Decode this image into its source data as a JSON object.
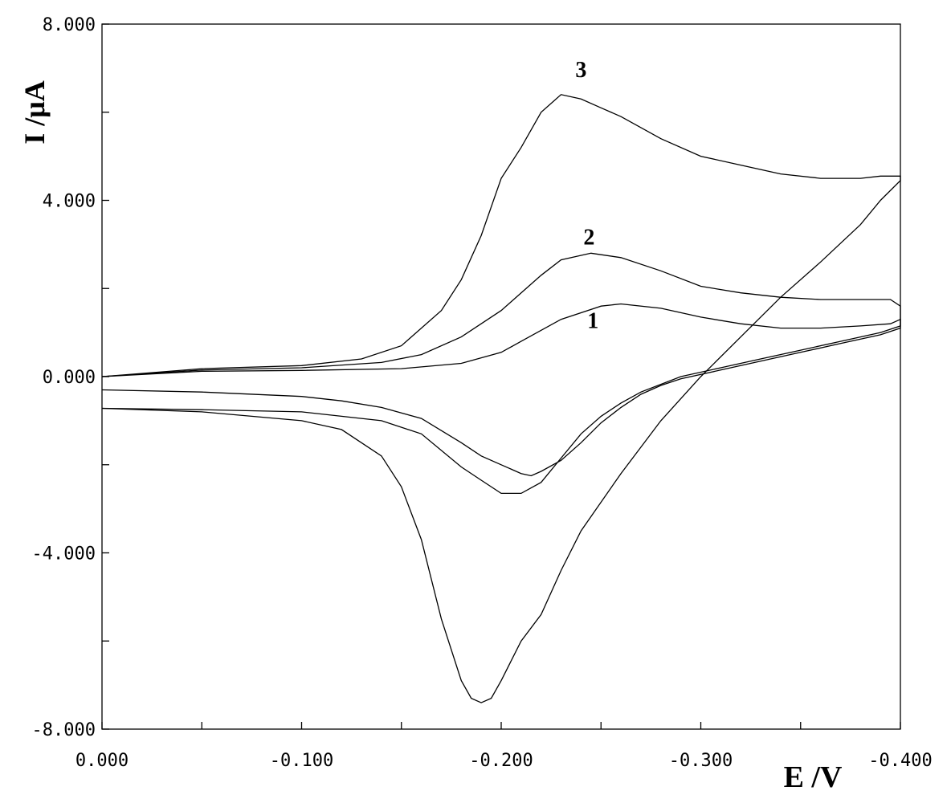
{
  "chart_data": {
    "type": "line",
    "title": "",
    "xlabel": "E /V",
    "ylabel": "I /μA",
    "xlim": [
      0.0,
      -0.4
    ],
    "ylim": [
      -8.0,
      8.0
    ],
    "grid": false,
    "x_ticks": [
      0.0,
      -0.05,
      -0.1,
      -0.15,
      -0.2,
      -0.25,
      -0.3,
      -0.35,
      -0.4
    ],
    "x_tick_labels": [
      "0.000",
      "",
      "-0.100",
      "",
      "-0.200",
      "",
      "-0.300",
      "",
      "-0.400"
    ],
    "y_ticks": [
      -8.0,
      -6.0,
      -4.0,
      -2.0,
      0.0,
      2.0,
      4.0,
      6.0,
      8.0
    ],
    "y_tick_labels": [
      "-8.000",
      "",
      "-4.000",
      "",
      "0.000",
      "",
      "4.000",
      "",
      "8.000"
    ],
    "series": [
      {
        "name": "1",
        "label_at": [
          -0.246,
          1.1
        ],
        "x": [
          0.0,
          -0.05,
          -0.1,
          -0.15,
          -0.18,
          -0.2,
          -0.21,
          -0.23,
          -0.25,
          -0.26,
          -0.28,
          -0.3,
          -0.32,
          -0.34,
          -0.36,
          -0.38,
          -0.395,
          -0.4,
          -0.4,
          -0.39,
          -0.37,
          -0.35,
          -0.33,
          -0.31,
          -0.29,
          -0.28,
          -0.27,
          -0.26,
          -0.25,
          -0.24,
          -0.23,
          -0.22,
          -0.215,
          -0.21,
          -0.2,
          -0.19,
          -0.18,
          -0.16,
          -0.14,
          -0.12,
          -0.1,
          -0.05,
          0.0
        ],
        "y": [
          0.0,
          0.12,
          0.14,
          0.18,
          0.3,
          0.55,
          0.8,
          1.3,
          1.6,
          1.65,
          1.55,
          1.35,
          1.2,
          1.1,
          1.1,
          1.15,
          1.2,
          1.3,
          1.1,
          0.95,
          0.75,
          0.55,
          0.35,
          0.15,
          -0.05,
          -0.2,
          -0.4,
          -0.7,
          -1.05,
          -1.5,
          -1.9,
          -2.15,
          -2.25,
          -2.2,
          -2.0,
          -1.8,
          -1.5,
          -0.95,
          -0.7,
          -0.55,
          -0.45,
          -0.35,
          -0.3
        ]
      },
      {
        "name": "2",
        "label_at": [
          -0.244,
          3.0
        ],
        "x": [
          0.0,
          -0.05,
          -0.1,
          -0.14,
          -0.16,
          -0.18,
          -0.2,
          -0.22,
          -0.23,
          -0.245,
          -0.26,
          -0.28,
          -0.3,
          -0.32,
          -0.34,
          -0.36,
          -0.38,
          -0.395,
          -0.4,
          -0.4,
          -0.39,
          -0.37,
          -0.35,
          -0.33,
          -0.31,
          -0.29,
          -0.27,
          -0.26,
          -0.25,
          -0.24,
          -0.23,
          -0.22,
          -0.21,
          -0.2,
          -0.19,
          -0.18,
          -0.16,
          -0.14,
          -0.12,
          -0.1,
          -0.05,
          0.0
        ],
        "y": [
          0.0,
          0.15,
          0.2,
          0.32,
          0.5,
          0.9,
          1.5,
          2.3,
          2.65,
          2.8,
          2.7,
          2.4,
          2.05,
          1.9,
          1.8,
          1.75,
          1.75,
          1.75,
          1.6,
          1.15,
          1.0,
          0.8,
          0.6,
          0.4,
          0.2,
          0.0,
          -0.35,
          -0.6,
          -0.9,
          -1.3,
          -1.85,
          -2.4,
          -2.65,
          -2.65,
          -2.35,
          -2.05,
          -1.3,
          -1.0,
          -0.9,
          -0.8,
          -0.75,
          -0.72
        ]
      },
      {
        "name": "3",
        "label_at": [
          -0.24,
          6.8
        ],
        "x": [
          0.0,
          -0.05,
          -0.1,
          -0.13,
          -0.15,
          -0.17,
          -0.18,
          -0.19,
          -0.2,
          -0.21,
          -0.22,
          -0.23,
          -0.24,
          -0.25,
          -0.26,
          -0.28,
          -0.3,
          -0.32,
          -0.34,
          -0.36,
          -0.38,
          -0.39,
          -0.4,
          -0.4,
          -0.39,
          -0.38,
          -0.36,
          -0.34,
          -0.32,
          -0.3,
          -0.28,
          -0.26,
          -0.24,
          -0.23,
          -0.22,
          -0.21,
          -0.2,
          -0.195,
          -0.19,
          -0.185,
          -0.18,
          -0.17,
          -0.16,
          -0.15,
          -0.14,
          -0.12,
          -0.1,
          -0.05,
          0.0
        ],
        "y": [
          0.0,
          0.18,
          0.25,
          0.4,
          0.7,
          1.5,
          2.2,
          3.2,
          4.5,
          5.2,
          6.0,
          6.4,
          6.3,
          6.1,
          5.9,
          5.4,
          5.0,
          4.8,
          4.6,
          4.5,
          4.5,
          4.55,
          4.55,
          4.45,
          4.0,
          3.45,
          2.6,
          1.8,
          0.9,
          0.0,
          -1.0,
          -2.2,
          -3.5,
          -4.4,
          -5.4,
          -6.0,
          -6.9,
          -7.3,
          -7.4,
          -7.3,
          -6.9,
          -5.5,
          -3.7,
          -2.5,
          -1.8,
          -1.2,
          -1.0,
          -0.8,
          -0.72
        ]
      }
    ]
  }
}
